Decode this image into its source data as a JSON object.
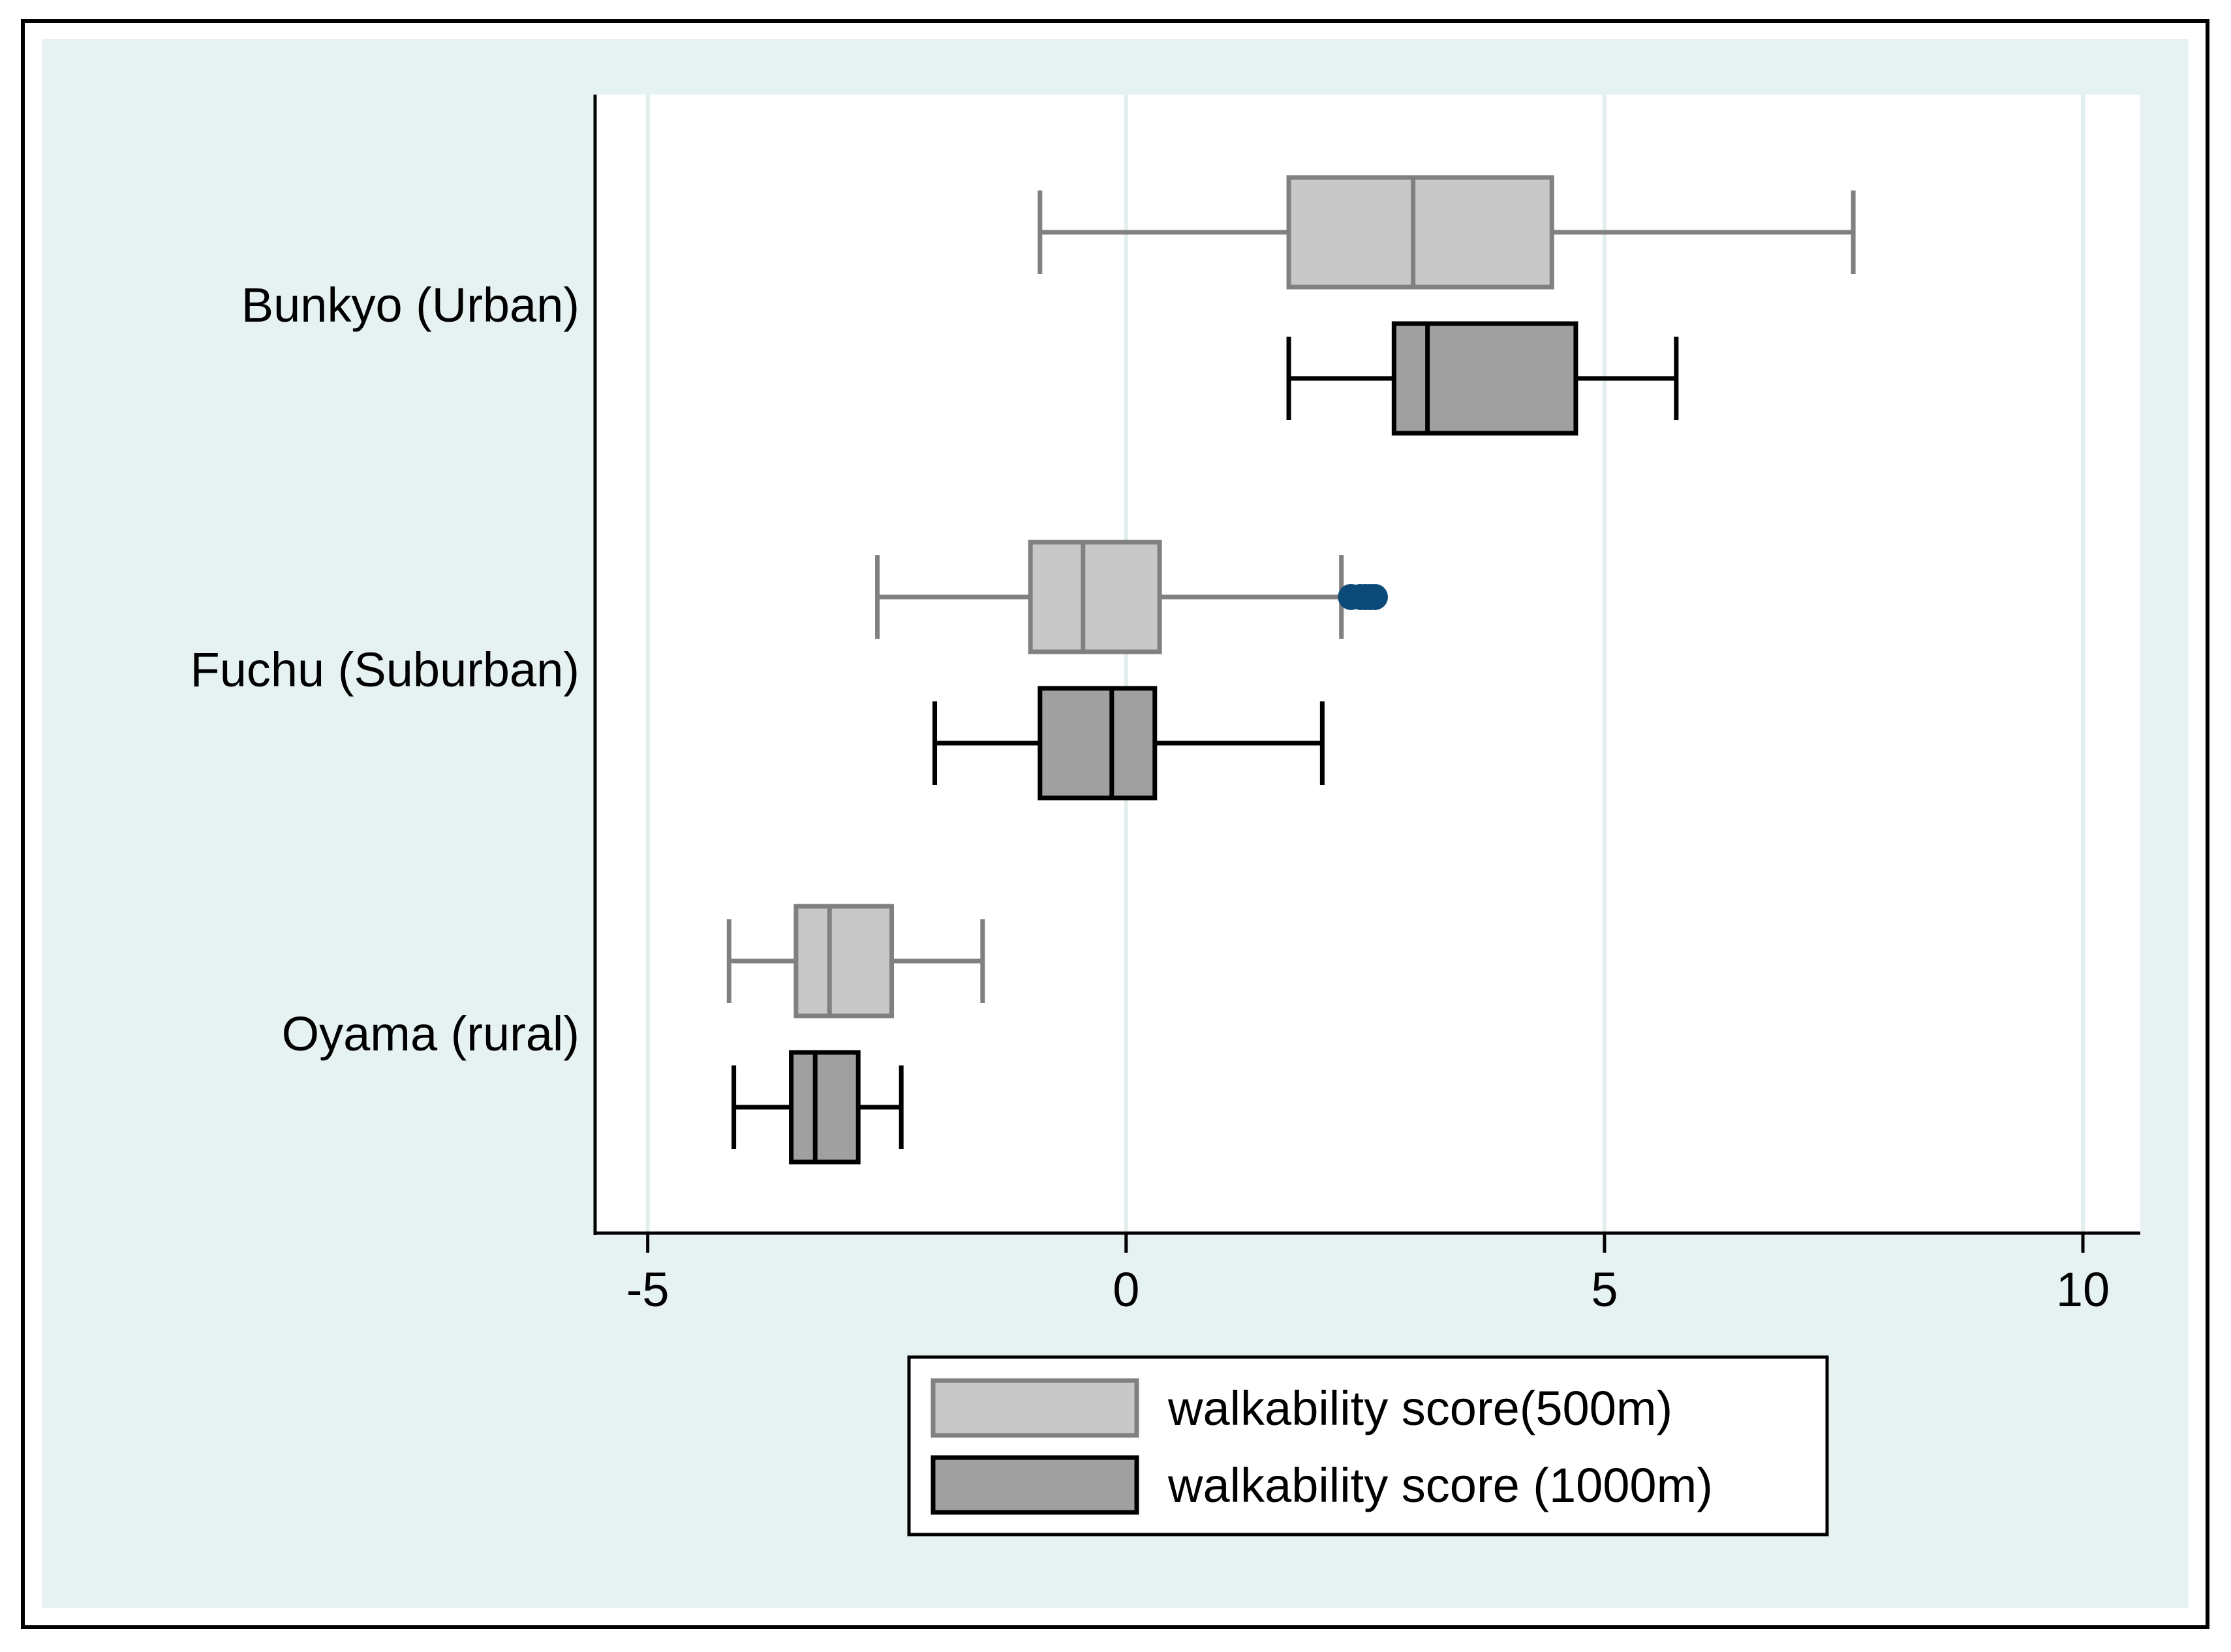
{
  "colors": {
    "outer_background": "#e6f2f2",
    "plot_background": "#ffffff",
    "grid": "#e2eded",
    "frame": "#000000",
    "box_500_fill": "#c8c8c8",
    "box_500_stroke": "#808080",
    "box_1000_fill": "#a0a0a0",
    "box_1000_stroke": "#000000",
    "outlier": "#0b4a78"
  },
  "chart_data": {
    "type": "boxplot",
    "orientation": "horizontal",
    "title": "",
    "xlabel": "",
    "ylabel": "",
    "xlim": [
      -5.55,
      10.6
    ],
    "xticks": [
      -5,
      0,
      5,
      10
    ],
    "xtick_labels": [
      "-5",
      "0",
      "5",
      "10"
    ],
    "grid": true,
    "legend_position": "bottom-center",
    "categories": [
      "Bunkyo (Urban)",
      "Fuchu (Suburban)",
      "Oyama (rural)"
    ],
    "series": [
      {
        "name": "walkability score(500m)",
        "boxes": [
          {
            "whisker_low": -0.9,
            "q1": 1.7,
            "median": 3.0,
            "q3": 4.45,
            "whisker_high": 7.6,
            "outliers": []
          },
          {
            "whisker_low": -2.6,
            "q1": -1.0,
            "median": -0.45,
            "q3": 0.35,
            "whisker_high": 2.25,
            "outliers": [
              2.35,
              2.45,
              2.5,
              2.55,
              2.6
            ]
          },
          {
            "whisker_low": -4.15,
            "q1": -3.45,
            "median": -3.1,
            "q3": -2.45,
            "whisker_high": -1.5,
            "outliers": []
          }
        ]
      },
      {
        "name": "walkability score (1000m)",
        "boxes": [
          {
            "whisker_low": 1.7,
            "q1": 2.8,
            "median": 3.15,
            "q3": 4.7,
            "whisker_high": 5.75,
            "outliers": []
          },
          {
            "whisker_low": -2.0,
            "q1": -0.9,
            "median": -0.15,
            "q3": 0.3,
            "whisker_high": 2.05,
            "outliers": []
          },
          {
            "whisker_low": -4.1,
            "q1": -3.5,
            "median": -3.25,
            "q3": -2.8,
            "whisker_high": -2.35,
            "outliers": []
          }
        ]
      }
    ]
  }
}
